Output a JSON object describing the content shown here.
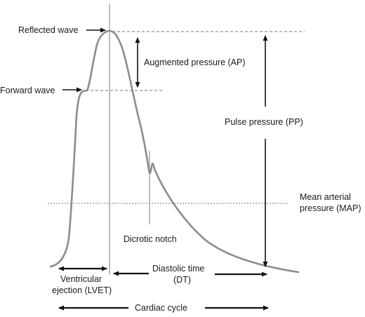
{
  "labels": {
    "reflected_wave": "Reflected wave",
    "forward_wave": "Forward wave",
    "augmented_pressure": "Augmented pressure (AP)",
    "pulse_pressure": "Pulse pressure (PP)",
    "mean_arterial_line1": "Mean arterial",
    "mean_arterial_line2": "pressure (MAP)",
    "dicrotic_notch": "Dicrotic notch",
    "ventricular_line1": "Ventricular",
    "ventricular_line2": "ejection (LVET)",
    "diastolic_line1": "Diastolic time",
    "diastolic_line2": "(DT)",
    "cardiac_cycle": "Cardiac cycle"
  },
  "colors": {
    "wave": "#8c8c8c",
    "guides": "#a3a3a3",
    "arrows": "#111111",
    "text": "#1a1a1a"
  }
}
